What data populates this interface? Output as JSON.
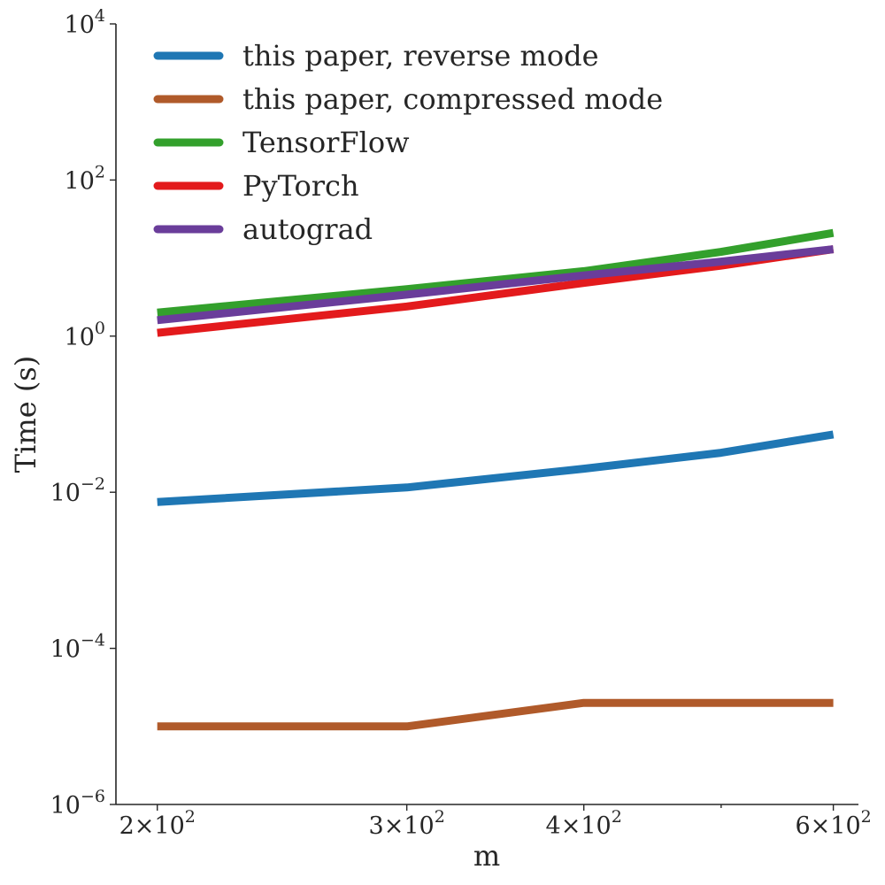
{
  "chart_data": {
    "type": "line",
    "title": "",
    "xlabel": "m",
    "ylabel": "Time (s)",
    "x_scale": "log",
    "y_scale": "log",
    "xlim": [
      187,
      625
    ],
    "ylim": [
      1e-06,
      10000
    ],
    "x": [
      200,
      300,
      400,
      500,
      600
    ],
    "x_ticks": [
      {
        "value": 200,
        "mantissa": "2",
        "times": "×",
        "base": "10",
        "exp": "2"
      },
      {
        "value": 300,
        "mantissa": "3",
        "times": "×",
        "base": "10",
        "exp": "2"
      },
      {
        "value": 400,
        "mantissa": "4",
        "times": "×",
        "base": "10",
        "exp": "2"
      },
      {
        "value": 600,
        "mantissa": "6",
        "times": "×",
        "base": "10",
        "exp": "2"
      }
    ],
    "x_minor_ticks": [
      500
    ],
    "y_ticks": [
      {
        "value": 1e-06,
        "base": "10",
        "exp": "−6"
      },
      {
        "value": 0.0001,
        "base": "10",
        "exp": "−4"
      },
      {
        "value": 0.01,
        "base": "10",
        "exp": "−2"
      },
      {
        "value": 1,
        "base": "10",
        "exp": "0"
      },
      {
        "value": 100,
        "base": "10",
        "exp": "2"
      },
      {
        "value": 10000,
        "base": "10",
        "exp": "4"
      }
    ],
    "grid": false,
    "legend_position": "top-left",
    "series": [
      {
        "name": "this paper, reverse mode",
        "color": "#1f77b4",
        "values": [
          0.0075,
          0.0115,
          0.02,
          0.032,
          0.055
        ]
      },
      {
        "name": "this paper, compressed mode",
        "color": "#b05a2a",
        "values": [
          1e-05,
          1e-05,
          2e-05,
          2e-05,
          2e-05
        ]
      },
      {
        "name": "TensorFlow",
        "color": "#33a02c",
        "values": [
          2.0,
          4.0,
          6.8,
          12.0,
          21.0
        ]
      },
      {
        "name": "PyTorch",
        "color": "#e31a1c",
        "values": [
          1.1,
          2.4,
          4.8,
          8.0,
          13.0
        ]
      },
      {
        "name": "autograd",
        "color": "#6a3d9a",
        "values": [
          1.6,
          3.4,
          6.0,
          9.0,
          13.0
        ]
      }
    ]
  }
}
